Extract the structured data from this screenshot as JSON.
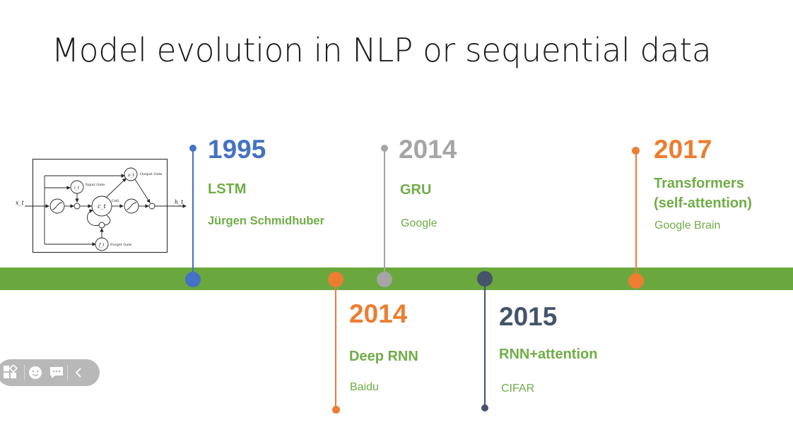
{
  "slide": {
    "title": "Model evolution in NLP or sequential data"
  },
  "timeline_color": "#6aa83e",
  "milestones": [
    {
      "year": "1995",
      "model": "LSTM",
      "author": "Jürgen Schmidhuber",
      "color": "#4472c4",
      "position": "above"
    },
    {
      "year": "2014",
      "model": "Deep RNN",
      "author": "Baidu",
      "color": "#ed7d31",
      "position": "below"
    },
    {
      "year": "2014",
      "model": "GRU",
      "author": "Google",
      "color": "#a5a5a5",
      "position": "above"
    },
    {
      "year": "2015",
      "model": "RNN+attention",
      "author": "CIFAR",
      "color": "#44546a",
      "position": "below"
    },
    {
      "year": "2017",
      "model_line1": "Transformers",
      "model_line2": "(self-attention)",
      "author": "Google Brain",
      "color": "#ed7d31",
      "position": "above"
    }
  ],
  "text_color_green": "#70ad47",
  "lstm_figure": {
    "x_in": "x_t",
    "h_out": "h_t",
    "input_gate_symbol": "i_t",
    "input_gate_label": "Input Gate",
    "output_gate_symbol": "o_t",
    "output_gate_label": "Output Gate",
    "forget_gate_symbol": "f_t",
    "forget_gate_label": "Forget Gate",
    "cell_symbol": "c_t",
    "cell_label": "Cell"
  },
  "toolbar": {
    "icons": [
      "layout-grid-icon",
      "emoji-icon",
      "chat-icon",
      "chevron-left-icon"
    ]
  }
}
